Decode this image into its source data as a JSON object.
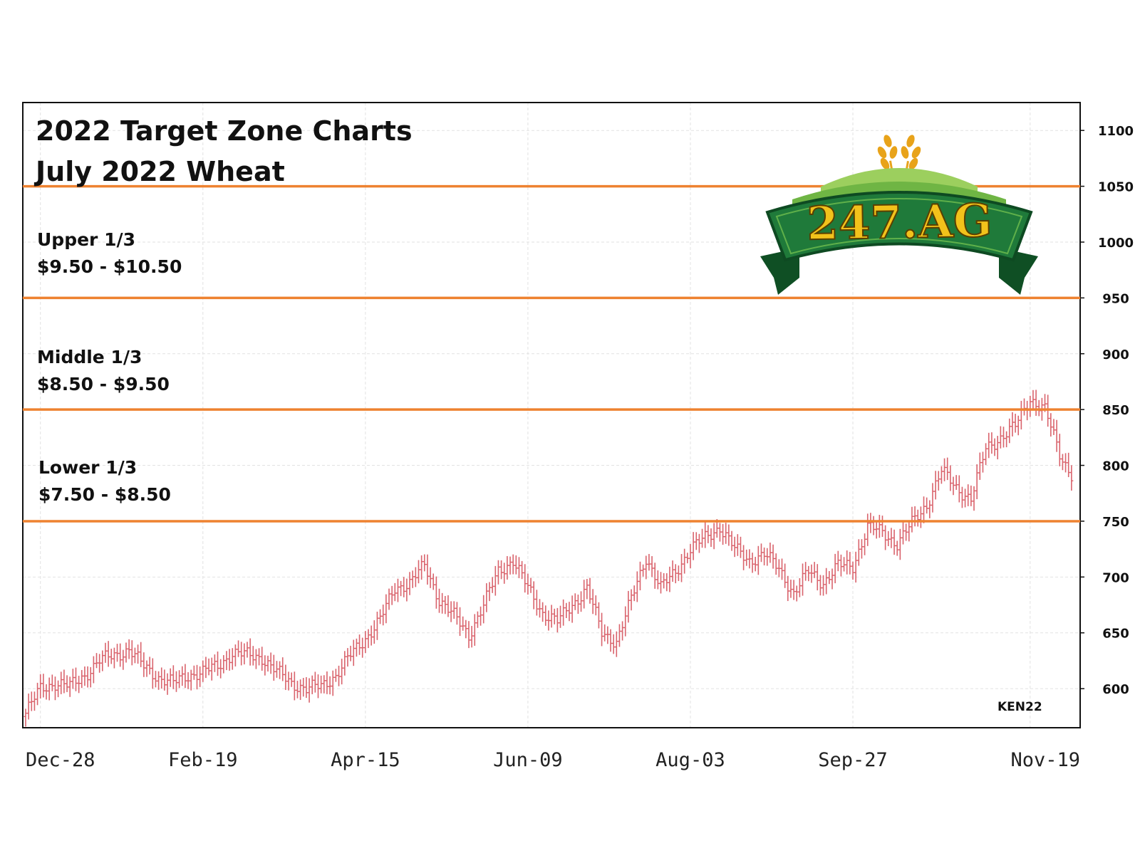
{
  "chart_data": {
    "type": "bar",
    "subtype": "ohlc",
    "title": "2022 Target Zone Charts",
    "subtitle": "July 2022 Wheat",
    "contract_label": "KEN22",
    "logo_text": "247.AG",
    "xlabel": "",
    "ylabel": "",
    "ylim": [
      565,
      1125
    ],
    "y_ticks": [
      600,
      650,
      700,
      750,
      800,
      850,
      900,
      950,
      1000,
      1050,
      1100
    ],
    "x_ticks": [
      "Dec-28",
      "Feb-19",
      "Apr-15",
      "Jun-09",
      "Aug-03",
      "Sep-27",
      "Nov-19"
    ],
    "grid": true,
    "series_color": "#d9636c",
    "zone_line_color": "#ee8230",
    "zone_lines": [
      1050,
      950,
      850,
      750
    ],
    "zones": [
      {
        "name": "Upper 1/3",
        "range": "$9.50 - $10.50"
      },
      {
        "name": "Middle 1/3",
        "range": "$8.50 - $9.50"
      },
      {
        "name": "Lower 1/3",
        "range": "$7.50 - $8.50"
      }
    ],
    "series": [
      {
        "x_index": [
          0,
          5,
          10,
          15,
          20,
          25,
          30,
          35,
          40,
          45,
          50,
          55,
          60,
          65,
          70,
          75,
          80,
          85,
          90,
          95,
          100,
          105,
          110,
          115,
          120,
          125,
          130,
          135,
          140,
          145,
          150,
          155,
          160,
          165,
          170,
          175,
          180,
          185,
          190,
          195,
          200,
          205,
          210,
          215,
          220,
          225,
          230,
          235,
          240,
          245,
          250,
          255,
          260,
          265,
          270,
          275,
          280,
          285,
          290,
          295,
          300,
          305,
          310,
          315,
          320,
          325,
          330,
          335,
          340,
          345,
          350,
          355
        ],
        "close": [
          578,
          600,
          605,
          602,
          612,
          625,
          630,
          635,
          620,
          610,
          605,
          612,
          615,
          620,
          632,
          630,
          628,
          615,
          605,
          600,
          602,
          612,
          630,
          645,
          662,
          690,
          695,
          710,
          680,
          665,
          648,
          675,
          705,
          715,
          690,
          668,
          660,
          675,
          690,
          650,
          642,
          680,
          718,
          690,
          705,
          725,
          735,
          745,
          725,
          715,
          720,
          708,
          685,
          705,
          695,
          710,
          710,
          745,
          740,
          730,
          748,
          765,
          795,
          780,
          770,
          815,
          825,
          835,
          860,
          850,
          810,
          788
        ],
        "x_tick_index": [
          5,
          60,
          115,
          170,
          225,
          280,
          340
        ]
      }
    ]
  }
}
